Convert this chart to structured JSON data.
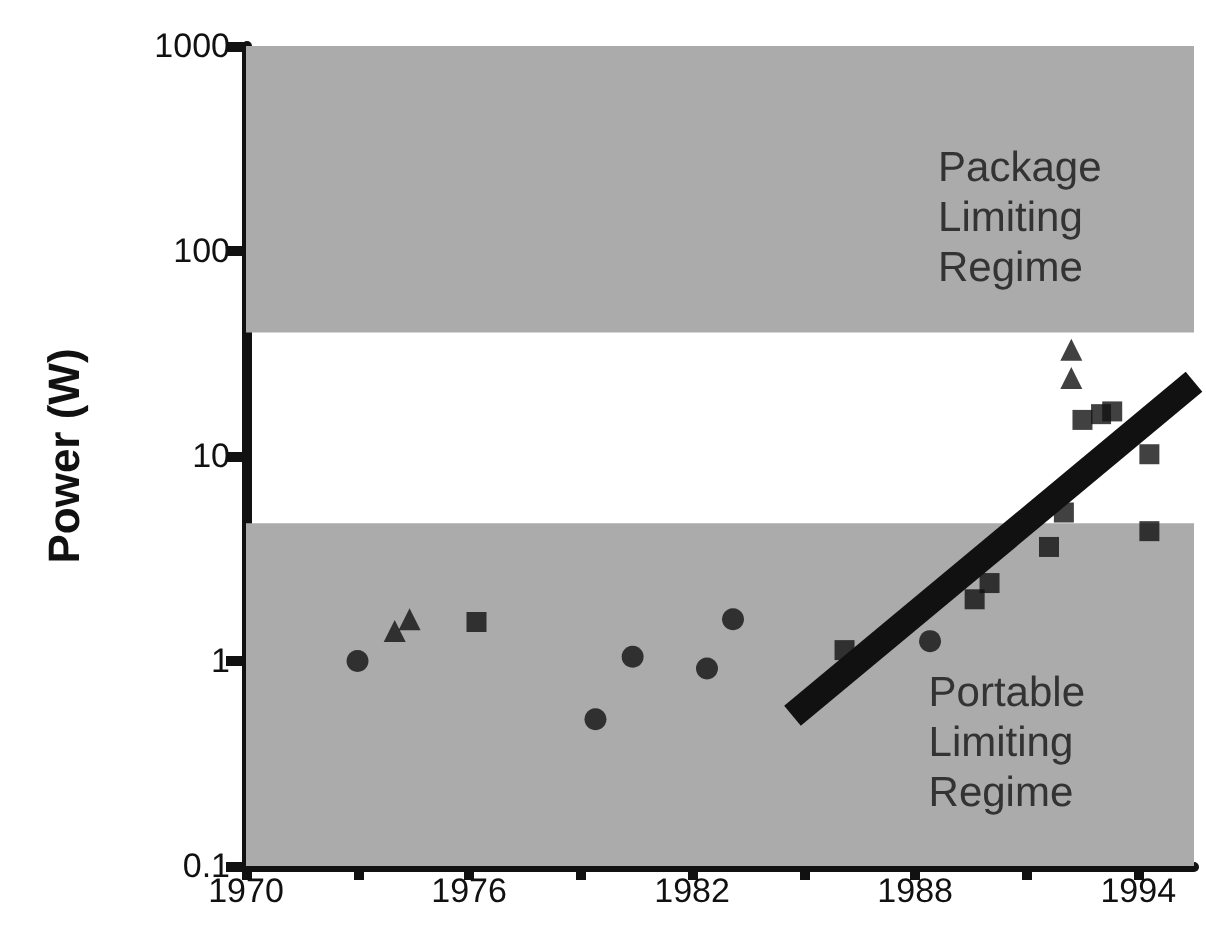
{
  "chart_data": {
    "type": "scatter",
    "ylabel": "Power (W)",
    "log": "y",
    "xlim": [
      1970,
      1995.5
    ],
    "xticks": [
      1970,
      {
        "value": 1973,
        "label": null
      },
      1976,
      {
        "value": 1979,
        "label": null
      },
      1982,
      {
        "value": 1985,
        "label": null
      },
      1988,
      {
        "value": 1991,
        "label": null
      },
      1994
    ],
    "ylim": [
      0.1,
      1000
    ],
    "yticks": [
      0.1,
      1,
      10,
      100,
      1000
    ],
    "bands": [
      {
        "axis": "y",
        "from": 40,
        "to": 1000,
        "label": "Package\nLimiting\nRegime",
        "color": "#ababab"
      },
      {
        "axis": "y",
        "from": 0.1,
        "to": 4.7,
        "label": "Portable\nLimiting\nRegime",
        "color": "#ababab"
      }
    ],
    "series": [
      {
        "color": "#111111",
        "marker": "circle",
        "x": [
          1973,
          1979.4,
          1980.4,
          1982.4,
          1983.1,
          1988.4
        ],
        "values": [
          1.0,
          0.52,
          1.05,
          0.92,
          1.6,
          1.25
        ]
      },
      {
        "color": "#111111",
        "marker": "triangle",
        "x": [
          1974,
          1974.4,
          1992.2,
          1992.2
        ],
        "values": [
          1.4,
          1.6,
          33,
          24
        ]
      },
      {
        "color": "#111111",
        "marker": "square",
        "x": [
          1976.2,
          1986.1,
          1989.6,
          1990,
          1991.6,
          1992,
          1992.5,
          1993,
          1993.3,
          1994.3,
          1994.3
        ],
        "values": [
          1.55,
          1.13,
          2.0,
          2.4,
          3.6,
          5.3,
          15,
          16,
          16.5,
          10.2,
          4.3
        ]
      },
      {
        "type": "line",
        "color": "#111111",
        "marker": "none",
        "x": [
          1984.7,
          1995.5
        ],
        "values": [
          0.54,
          23
        ]
      }
    ]
  }
}
